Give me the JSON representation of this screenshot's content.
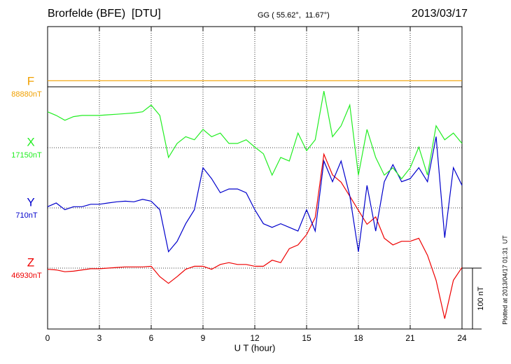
{
  "chart_data": {
    "type": "line",
    "title": "Brorfelde (BFE)  [DTU]",
    "subtitle": "GG ( 55.62°,  11.67°)",
    "date": "2013/03/17",
    "x_label": "U T (hour)",
    "footnote": "Plotted at 2013/04/17 01:31  UT",
    "scale_bar": {
      "value": 100,
      "label": "100 nT"
    },
    "xlim": [
      0,
      24
    ],
    "xticks": [
      0,
      3,
      6,
      9,
      12,
      15,
      18,
      21,
      24
    ],
    "grid": true,
    "x": [
      0,
      0.5,
      1,
      1.5,
      2,
      2.5,
      3,
      3.5,
      4,
      4.5,
      5,
      5.5,
      6,
      6.5,
      7,
      7.5,
      8,
      8.5,
      9,
      9.5,
      10,
      10.5,
      11,
      11.5,
      12,
      12.5,
      13,
      13.5,
      14,
      14.5,
      15,
      15.5,
      16,
      16.5,
      17,
      17.5,
      18,
      18.5,
      19,
      19.5,
      20,
      20.5,
      21,
      21.5,
      22,
      22.5,
      23,
      23.5,
      24
    ],
    "series": [
      {
        "name": "F",
        "color": "#f0a000",
        "baseline": {
          "value": 88880,
          "label": "88880nT"
        },
        "values": [
          88890,
          88890,
          88890,
          88890,
          88890,
          88890,
          88890,
          88890,
          88890,
          88890,
          88890,
          88890,
          88890,
          88890,
          88890,
          88890,
          88890,
          88890,
          88890,
          88890,
          88890,
          88890,
          88890,
          88890,
          88890,
          88890,
          88890,
          88890,
          88890,
          88890,
          88890,
          88890,
          88890,
          88890,
          88890,
          88890,
          88890,
          88890,
          88890,
          88890,
          88890,
          88890,
          88890,
          88890,
          88890,
          88890,
          88890,
          88890,
          88890
        ]
      },
      {
        "name": "X",
        "color": "#22ee22",
        "baseline": {
          "value": 17150,
          "label": "17150nT"
        },
        "values": [
          17209,
          17203,
          17195,
          17201,
          17203,
          17203,
          17203,
          17204,
          17205,
          17206,
          17207,
          17209,
          17220,
          17203,
          17134,
          17157,
          17168,
          17163,
          17180,
          17168,
          17174,
          17157,
          17157,
          17163,
          17151,
          17140,
          17105,
          17134,
          17128,
          17174,
          17145,
          17163,
          17243,
          17168,
          17186,
          17220,
          17105,
          17180,
          17134,
          17105,
          17117,
          17099,
          17117,
          17151,
          17105,
          17186,
          17163,
          17174,
          17157
        ]
      },
      {
        "name": "Y",
        "color": "#0000cc",
        "baseline": {
          "value": 710,
          "label": "710nT"
        },
        "values": [
          712,
          718,
          707,
          712,
          712,
          716,
          716,
          718,
          720,
          721,
          720,
          724,
          721,
          707,
          638,
          655,
          684,
          707,
          776,
          758,
          735,
          741,
          741,
          735,
          707,
          684,
          678,
          684,
          678,
          672,
          707,
          672,
          787,
          753,
          787,
          730,
          638,
          747,
          672,
          753,
          781,
          753,
          758,
          776,
          753,
          827,
          661,
          776,
          747
        ]
      },
      {
        "name": "Z",
        "color": "#ee0000",
        "baseline": {
          "value": 46930,
          "label": "46930nT"
        },
        "values": [
          46928,
          46927,
          46924,
          46925,
          46927,
          46929,
          46929,
          46930,
          46931,
          46932,
          46932,
          46932,
          46933,
          46916,
          46905,
          46916,
          46928,
          46933,
          46933,
          46928,
          46936,
          46939,
          46936,
          46936,
          46933,
          46933,
          46943,
          46939,
          46962,
          46968,
          46985,
          47013,
          47117,
          47083,
          47071,
          47048,
          47025,
          47002,
          47014,
          46979,
          46968,
          46974,
          46974,
          46979,
          46951,
          46910,
          46847,
          46910,
          46931
        ]
      }
    ]
  }
}
